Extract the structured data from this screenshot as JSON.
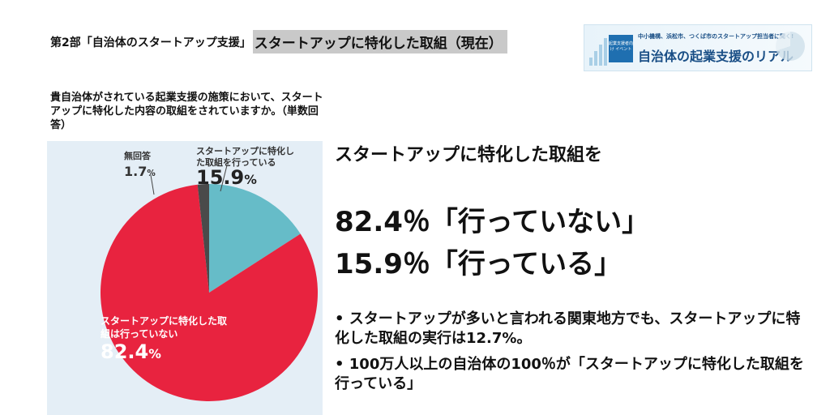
{
  "header": {
    "part": "第2部「自治体のスタートアップ支援」",
    "topic": "スタートアップに特化した取組（現在）"
  },
  "banner": {
    "tag": "起業支援者向け イベント",
    "subtitle": "中小機構、浜松市、つくば市のスタートアップ担当者に聞く!",
    "title": "自治体の起業支援のリアル"
  },
  "question": "貴自治体がされている起業支援の施策において、スタートアップに特化した内容の取組をされていますか。（単数回答）",
  "chart_data": {
    "type": "pie",
    "categories": [
      "スタートアップに特化した取組を行っている",
      "スタートアップに特化した取組は行っていない",
      "無回答"
    ],
    "values": [
      15.9,
      82.4,
      1.7
    ],
    "colors": [
      "#66bcc8",
      "#e8233f",
      "#4a4a4a"
    ],
    "labels": {
      "doing": "スタートアップに特化した取組を行っている",
      "doing_pct": "15.9",
      "not_doing": "スタートアップに特化した取組は行っていない",
      "not_doing_pct": "82.4",
      "none": "無回答",
      "none_pct": "1.7"
    },
    "unit": "%"
  },
  "summary": {
    "headline": "スタートアップに特化した取組を",
    "line1": "82.4％「行っていない」",
    "line2": "15.9％「行っている」",
    "bullets": [
      "スタートアップが多いと言われる関東地方でも、スタートアップに特化した取組の実行は12.7%。",
      "100万人以上の自治体の100％が「スタートアップに特化した取組を行っている」"
    ]
  }
}
